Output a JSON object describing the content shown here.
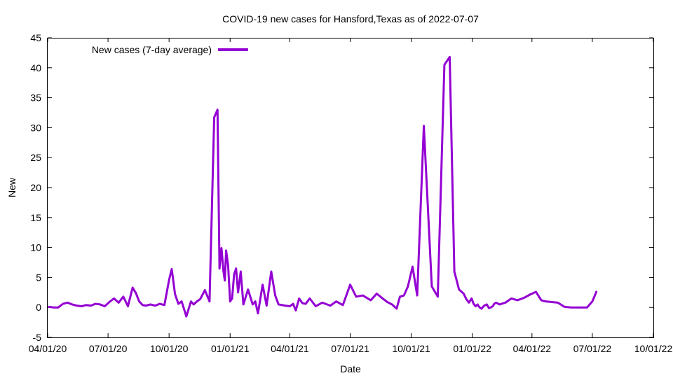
{
  "chart_data": {
    "type": "line",
    "title": "COVID-19 new cases for Hansford,Texas as of 2022-07-07",
    "xlabel": "Date",
    "ylabel": "New",
    "xlim": [
      "2020-04-01",
      "2022-10-01"
    ],
    "ylim": [
      -5,
      45
    ],
    "x_ticks": [
      "04/01/20",
      "07/01/20",
      "10/01/20",
      "01/01/21",
      "04/01/21",
      "07/01/21",
      "10/01/21",
      "01/01/22",
      "04/01/22",
      "07/01/22",
      "10/01/22"
    ],
    "y_ticks": [
      -5,
      0,
      5,
      10,
      15,
      20,
      25,
      30,
      35,
      40,
      45
    ],
    "grid": false,
    "legend_position": "top-left",
    "series": [
      {
        "name": "New cases (7-day average)",
        "color": "#9400d3",
        "x": [
          "2020-04-03",
          "2020-04-10",
          "2020-04-17",
          "2020-04-24",
          "2020-05-01",
          "2020-05-08",
          "2020-05-15",
          "2020-05-22",
          "2020-05-29",
          "2020-06-05",
          "2020-06-12",
          "2020-06-19",
          "2020-06-26",
          "2020-07-03",
          "2020-07-10",
          "2020-07-17",
          "2020-07-24",
          "2020-07-31",
          "2020-08-07",
          "2020-08-12",
          "2020-08-17",
          "2020-08-22",
          "2020-08-27",
          "2020-09-03",
          "2020-09-10",
          "2020-09-17",
          "2020-09-24",
          "2020-10-01",
          "2020-10-05",
          "2020-10-10",
          "2020-10-15",
          "2020-10-20",
          "2020-10-27",
          "2020-11-03",
          "2020-11-07",
          "2020-11-12",
          "2020-11-17",
          "2020-11-24",
          "2020-12-01",
          "2020-12-08",
          "2020-12-13",
          "2020-12-16",
          "2020-12-19",
          "2020-12-22",
          "2020-12-24",
          "2020-12-26",
          "2020-12-29",
          "2021-01-01",
          "2021-01-04",
          "2021-01-07",
          "2021-01-10",
          "2021-01-13",
          "2021-01-17",
          "2021-01-21",
          "2021-01-28",
          "2021-02-04",
          "2021-02-08",
          "2021-02-12",
          "2021-02-19",
          "2021-02-25",
          "2021-03-04",
          "2021-03-10",
          "2021-03-15",
          "2021-03-20",
          "2021-03-25",
          "2021-04-01",
          "2021-04-06",
          "2021-04-10",
          "2021-04-15",
          "2021-04-20",
          "2021-04-25",
          "2021-05-01",
          "2021-05-10",
          "2021-05-20",
          "2021-06-01",
          "2021-06-10",
          "2021-06-20",
          "2021-07-01",
          "2021-07-10",
          "2021-07-20",
          "2021-08-01",
          "2021-08-10",
          "2021-08-20",
          "2021-08-26",
          "2021-09-02",
          "2021-09-09",
          "2021-09-14",
          "2021-09-20",
          "2021-09-26",
          "2021-10-03",
          "2021-10-10",
          "2021-10-20",
          "2021-11-01",
          "2021-11-10",
          "2021-11-20",
          "2021-11-28",
          "2021-12-05",
          "2021-12-12",
          "2021-12-19",
          "2021-12-23",
          "2021-12-27",
          "2021-12-31",
          "2022-01-03",
          "2022-01-06",
          "2022-01-09",
          "2022-01-12",
          "2022-01-15",
          "2022-01-19",
          "2022-01-23",
          "2022-01-26",
          "2022-01-29",
          "2022-02-01",
          "2022-02-03",
          "2022-02-06",
          "2022-02-11",
          "2022-02-20",
          "2022-03-01",
          "2022-03-10",
          "2022-03-20",
          "2022-03-30",
          "2022-04-07",
          "2022-04-15",
          "2022-04-22",
          "2022-05-01",
          "2022-05-10",
          "2022-05-20",
          "2022-05-30",
          "2022-06-07",
          "2022-06-15",
          "2022-06-23",
          "2022-07-01",
          "2022-07-07"
        ],
        "y": [
          0.1,
          0.0,
          0.0,
          0.6,
          0.8,
          0.5,
          0.3,
          0.2,
          0.4,
          0.3,
          0.6,
          0.5,
          0.2,
          0.9,
          1.5,
          0.8,
          1.8,
          0.2,
          3.3,
          2.4,
          1.0,
          0.4,
          0.3,
          0.5,
          0.3,
          0.6,
          0.4,
          4.6,
          6.4,
          2.2,
          0.6,
          1.0,
          -1.5,
          1.0,
          0.5,
          1.0,
          1.4,
          2.9,
          1.0,
          31.7,
          33.0,
          6.5,
          9.9,
          6.0,
          4.5,
          9.5,
          7.0,
          1.0,
          1.5,
          5.5,
          6.5,
          2.5,
          6.0,
          0.5,
          3.0,
          0.5,
          1.0,
          -1.0,
          3.8,
          0.3,
          6.0,
          2.0,
          0.5,
          0.4,
          0.3,
          0.2,
          0.6,
          -0.5,
          1.5,
          0.7,
          0.6,
          1.5,
          0.2,
          0.8,
          0.3,
          1.0,
          0.4,
          3.8,
          1.8,
          2.0,
          1.2,
          2.3,
          1.4,
          0.9,
          0.5,
          -0.2,
          1.8,
          2.0,
          3.5,
          6.8,
          2.0,
          30.3,
          3.5,
          1.8,
          40.5,
          41.8,
          6.0,
          3.0,
          2.3,
          1.4,
          0.8,
          1.5,
          0.6,
          0.2,
          0.5,
          0.0,
          -0.2,
          0.3,
          0.5,
          -0.1,
          0.0,
          0.2,
          0.6,
          0.8,
          0.5,
          0.8,
          1.5,
          1.2,
          1.6,
          2.2,
          2.6,
          1.2,
          1.0,
          0.9,
          0.8,
          0.1,
          0.0,
          0.0,
          0.0,
          0.0,
          1.0,
          2.6
        ]
      }
    ]
  }
}
